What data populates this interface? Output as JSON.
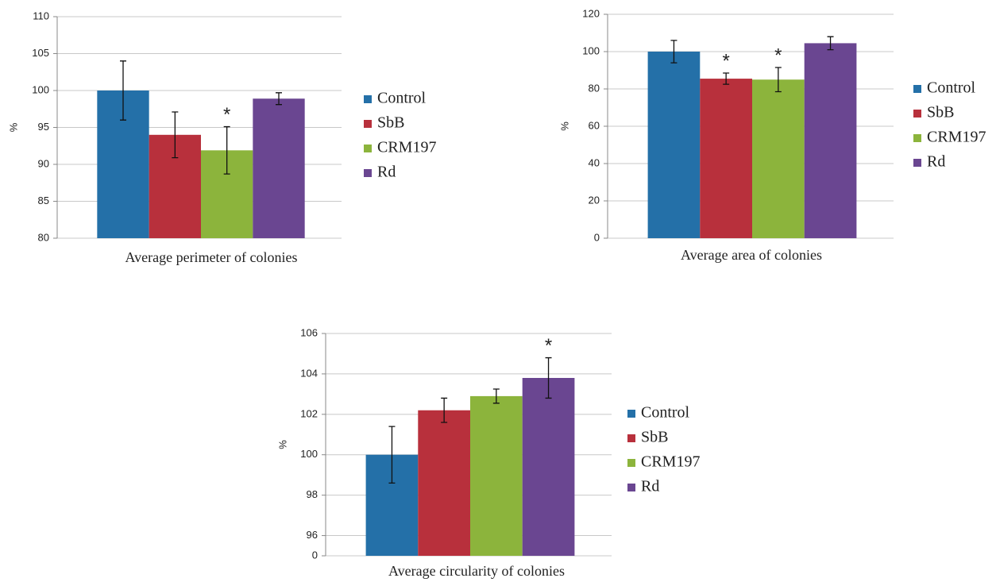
{
  "chart_data": [
    {
      "type": "bar",
      "ylabel": "%",
      "categories": [
        "Average perimeter of colonies"
      ],
      "ylim": [
        80,
        110
      ],
      "yticks": [
        80,
        85,
        90,
        95,
        100,
        105,
        110
      ],
      "grid": true,
      "legend": "right",
      "series": [
        {
          "name": "Control",
          "color": "#2470a8",
          "values": [
            100
          ],
          "errors": [
            4
          ]
        },
        {
          "name": "SbB",
          "color": "#b8303c",
          "values": [
            94
          ],
          "errors": [
            3.1
          ]
        },
        {
          "name": "CRM197",
          "color": "#8cb43c",
          "values": [
            91.9
          ],
          "errors": [
            3.2
          ],
          "annotations": [
            "*"
          ]
        },
        {
          "name": "Rd",
          "color": "#6a4691",
          "values": [
            98.9
          ],
          "errors": [
            0.8
          ]
        }
      ]
    },
    {
      "type": "bar",
      "ylabel": "%",
      "categories": [
        "Average area of colonies"
      ],
      "ylim": [
        0,
        120
      ],
      "yticks": [
        0,
        20,
        40,
        60,
        80,
        100,
        120
      ],
      "grid": true,
      "legend": "right",
      "series": [
        {
          "name": "Control",
          "color": "#2470a8",
          "values": [
            100
          ],
          "errors": [
            6
          ]
        },
        {
          "name": "SbB",
          "color": "#b8303c",
          "values": [
            85.5
          ],
          "errors": [
            3
          ],
          "annotations": [
            "*"
          ]
        },
        {
          "name": "CRM197",
          "color": "#8cb43c",
          "values": [
            85
          ],
          "errors": [
            6.5
          ],
          "annotations": [
            "*"
          ]
        },
        {
          "name": "Rd",
          "color": "#6a4691",
          "values": [
            104.5
          ],
          "errors": [
            3.5
          ]
        }
      ]
    },
    {
      "type": "bar",
      "ylabel": "%",
      "categories": [
        "Average circularity of colonies"
      ],
      "ylim": [
        0,
        106
      ],
      "y_break": [
        0,
        95
      ],
      "yticks": [
        0,
        96,
        98,
        100,
        102,
        104,
        106
      ],
      "grid": true,
      "legend": "right",
      "series": [
        {
          "name": "Control",
          "color": "#2470a8",
          "values": [
            100
          ],
          "errors": [
            1.4
          ]
        },
        {
          "name": "SbB",
          "color": "#b8303c",
          "values": [
            102.2
          ],
          "errors": [
            0.6
          ]
        },
        {
          "name": "CRM197",
          "color": "#8cb43c",
          "values": [
            102.9
          ],
          "errors": [
            0.35
          ]
        },
        {
          "name": "Rd",
          "color": "#6a4691",
          "values": [
            103.8
          ],
          "errors": [
            1.0
          ],
          "annotations": [
            "*"
          ]
        }
      ]
    }
  ]
}
